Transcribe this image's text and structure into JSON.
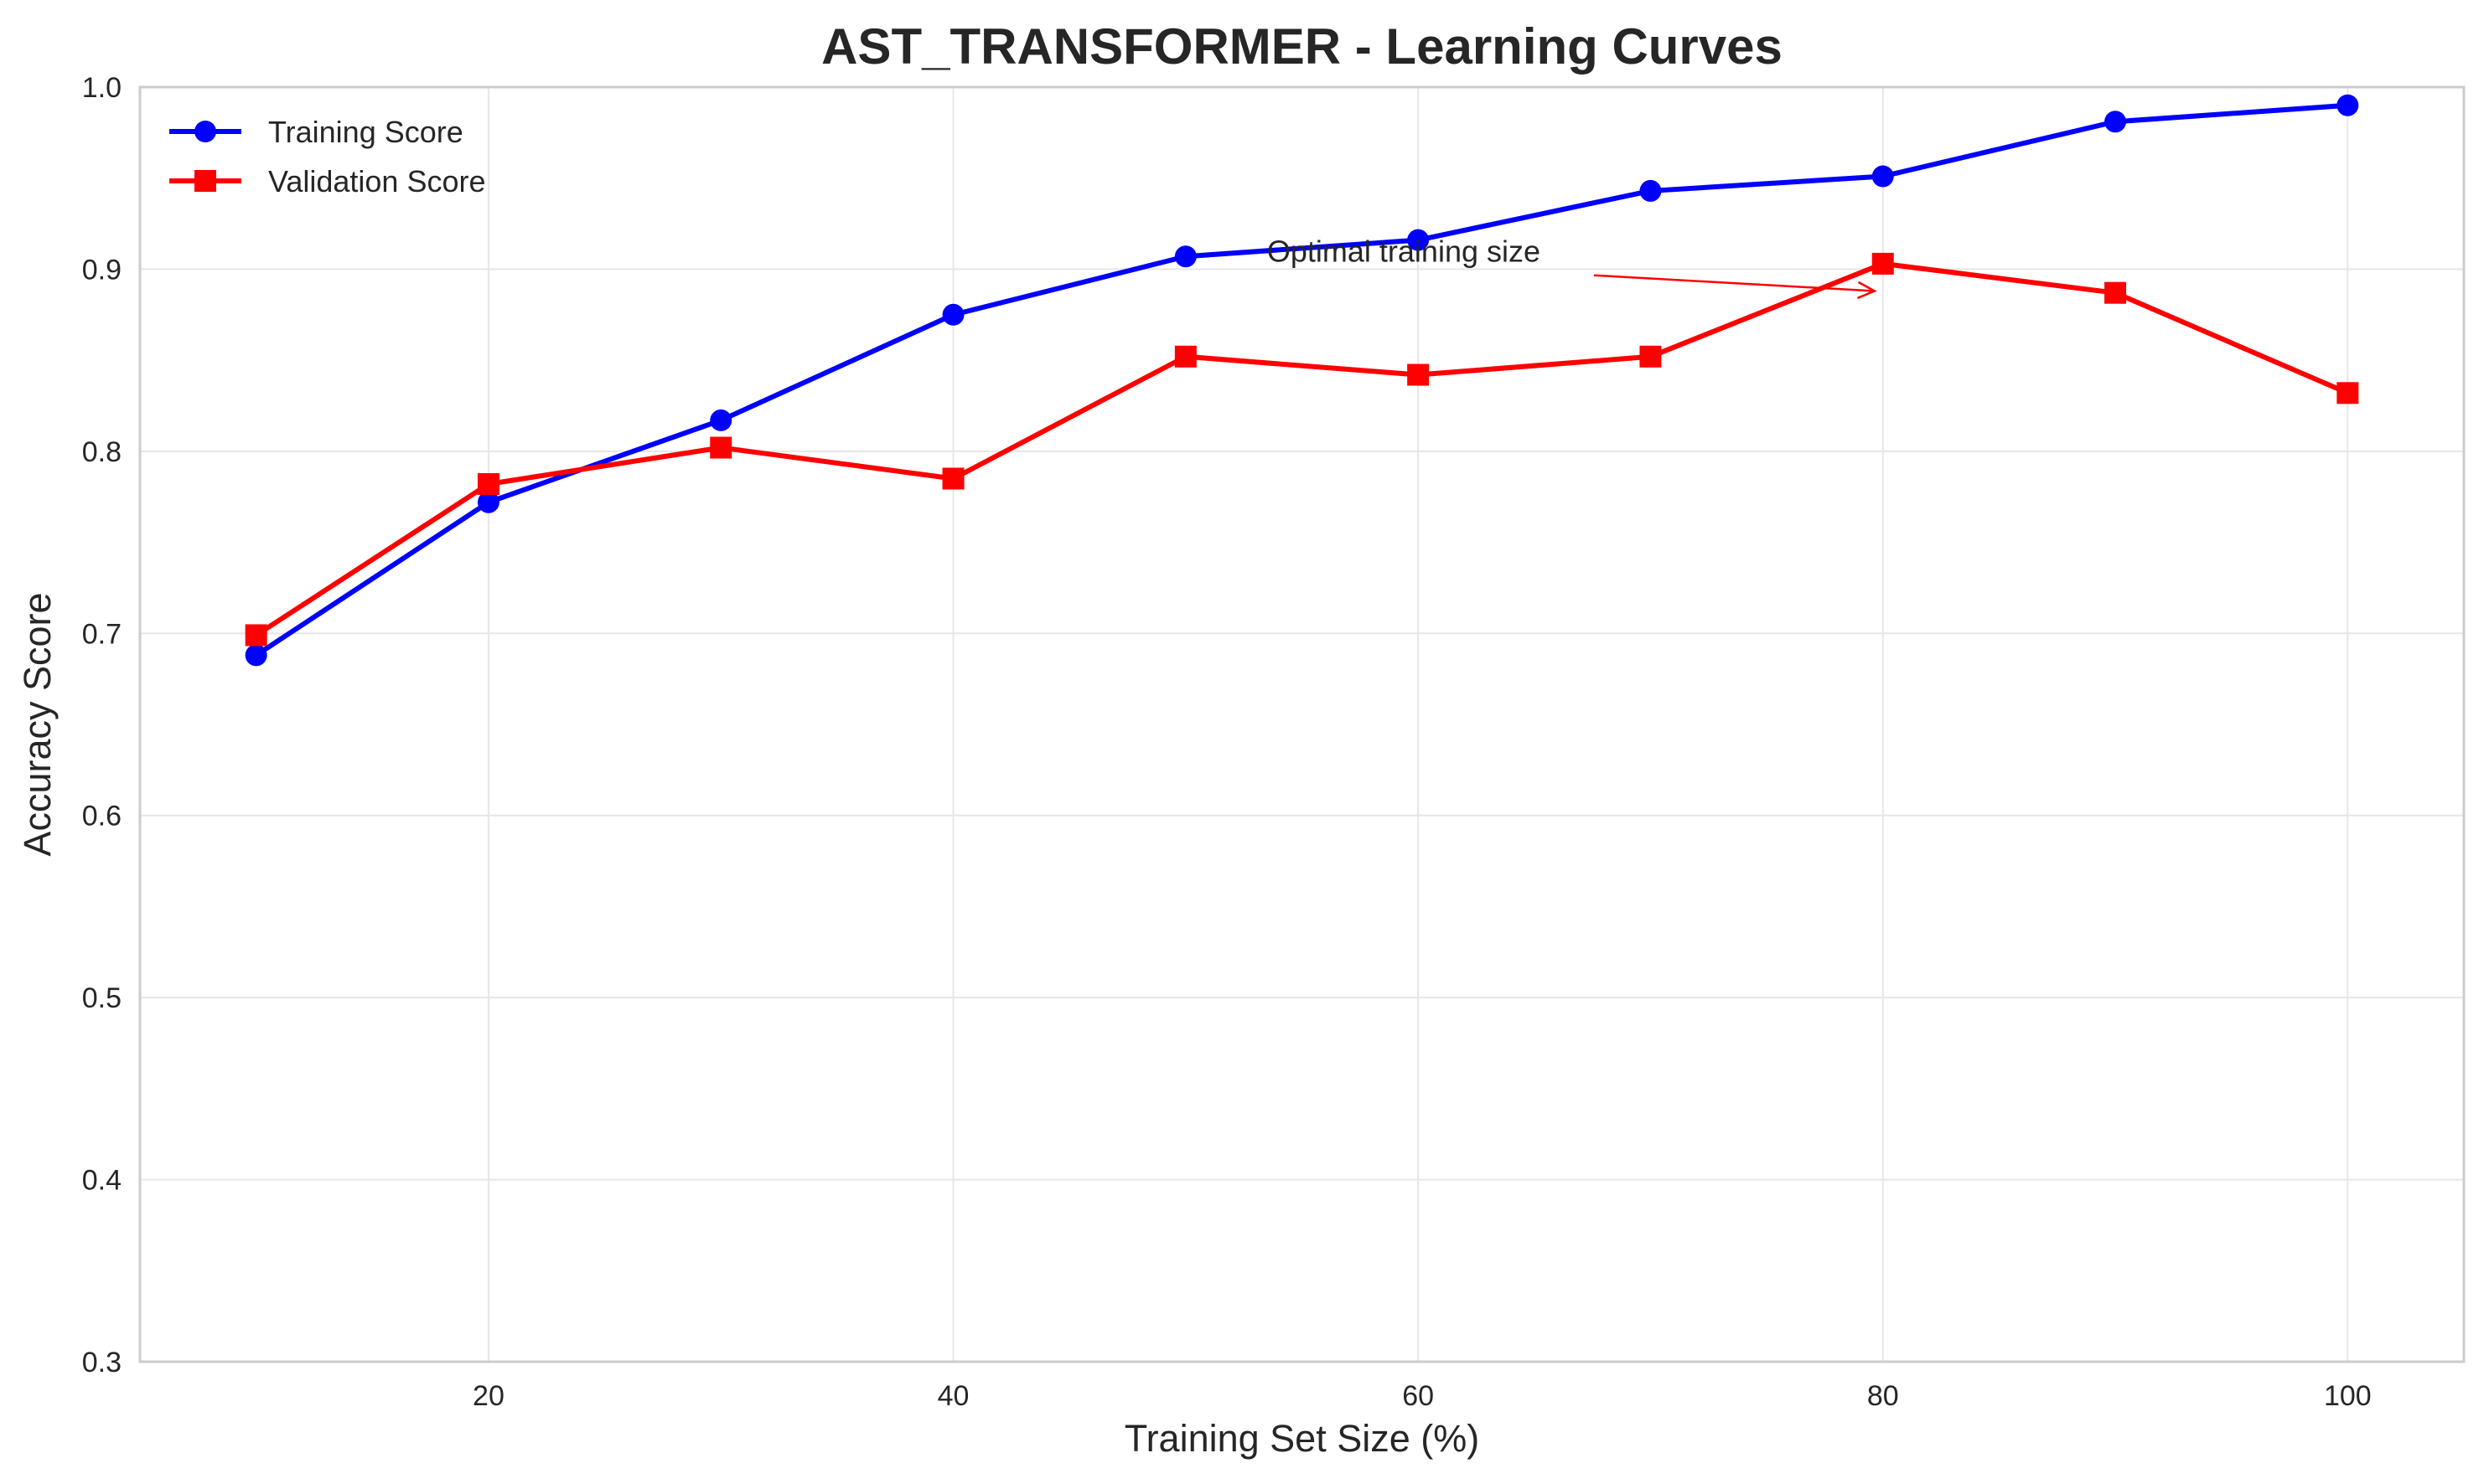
{
  "chart_data": {
    "type": "line",
    "title": "AST_TRANSFORMER - Learning Curves",
    "xlabel": "Training Set Size (%)",
    "ylabel": "Accuracy Score",
    "x": [
      10,
      20,
      30,
      40,
      50,
      60,
      70,
      80,
      90,
      100
    ],
    "xlim": [
      5,
      105
    ],
    "ylim": [
      0.3,
      1.0
    ],
    "xticks": [
      20,
      40,
      60,
      80,
      100
    ],
    "yticks": [
      0.3,
      0.4,
      0.5,
      0.6,
      0.7,
      0.8,
      0.9,
      1.0
    ],
    "xtick_labels": [
      "20",
      "40",
      "60",
      "80",
      "100"
    ],
    "ytick_labels": [
      "0.3",
      "0.4",
      "0.5",
      "0.6",
      "0.7",
      "0.8",
      "0.9",
      "1.0"
    ],
    "grid": true,
    "legend_position": "top-left",
    "series": [
      {
        "name": "Training Score",
        "color": "#0000ff",
        "marker": "circle",
        "values": [
          0.688,
          0.772,
          0.817,
          0.875,
          0.907,
          0.916,
          0.943,
          0.951,
          0.981,
          0.99
        ]
      },
      {
        "name": "Validation Score",
        "color": "#ff0000",
        "marker": "square",
        "values": [
          0.699,
          0.782,
          0.802,
          0.785,
          0.852,
          0.842,
          0.852,
          0.903,
          0.887,
          0.832
        ]
      }
    ],
    "annotations": [
      {
        "text": "Optimal training size",
        "text_x": 53.5,
        "text_y": 0.904,
        "arrow_to_x": 80,
        "arrow_to_y": 0.888
      }
    ]
  }
}
